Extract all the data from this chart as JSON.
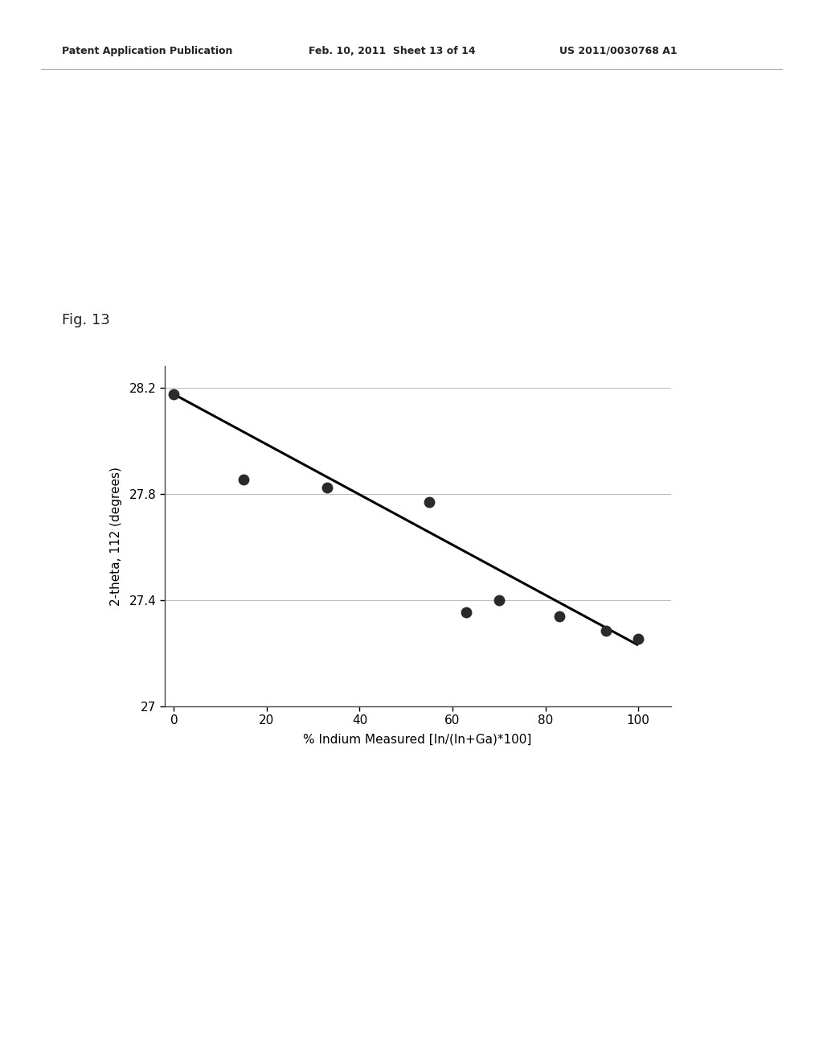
{
  "fig_label": "Fig. 13",
  "header_left": "Patent Application Publication",
  "header_center": "Feb. 10, 2011  Sheet 13 of 14",
  "header_right": "US 2011/0030768 A1",
  "scatter_x": [
    0,
    15,
    33,
    55,
    63,
    70,
    83,
    93,
    100
  ],
  "scatter_y": [
    28.175,
    27.855,
    27.825,
    27.77,
    27.355,
    27.4,
    27.34,
    27.285,
    27.255
  ],
  "line_x": [
    0,
    100
  ],
  "line_y": [
    28.175,
    27.23
  ],
  "xlabel": "% Indium Measured [In/(In+Ga)*100]",
  "ylabel": "2-theta, 112 (degrees)",
  "xlim": [
    -2,
    107
  ],
  "ylim": [
    27.0,
    28.28
  ],
  "yticks": [
    27.0,
    27.4,
    27.8,
    28.2
  ],
  "ytick_labels": [
    "27",
    "27.4",
    "27.8",
    "28.2"
  ],
  "xticks": [
    0,
    20,
    40,
    60,
    80,
    100
  ],
  "background_color": "#ffffff",
  "dot_color": "#2a2a2a",
  "line_color": "#000000",
  "dot_size": 100,
  "grid_color": "#bbbbbb",
  "header_fontsize": 9,
  "fig_label_fontsize": 13
}
